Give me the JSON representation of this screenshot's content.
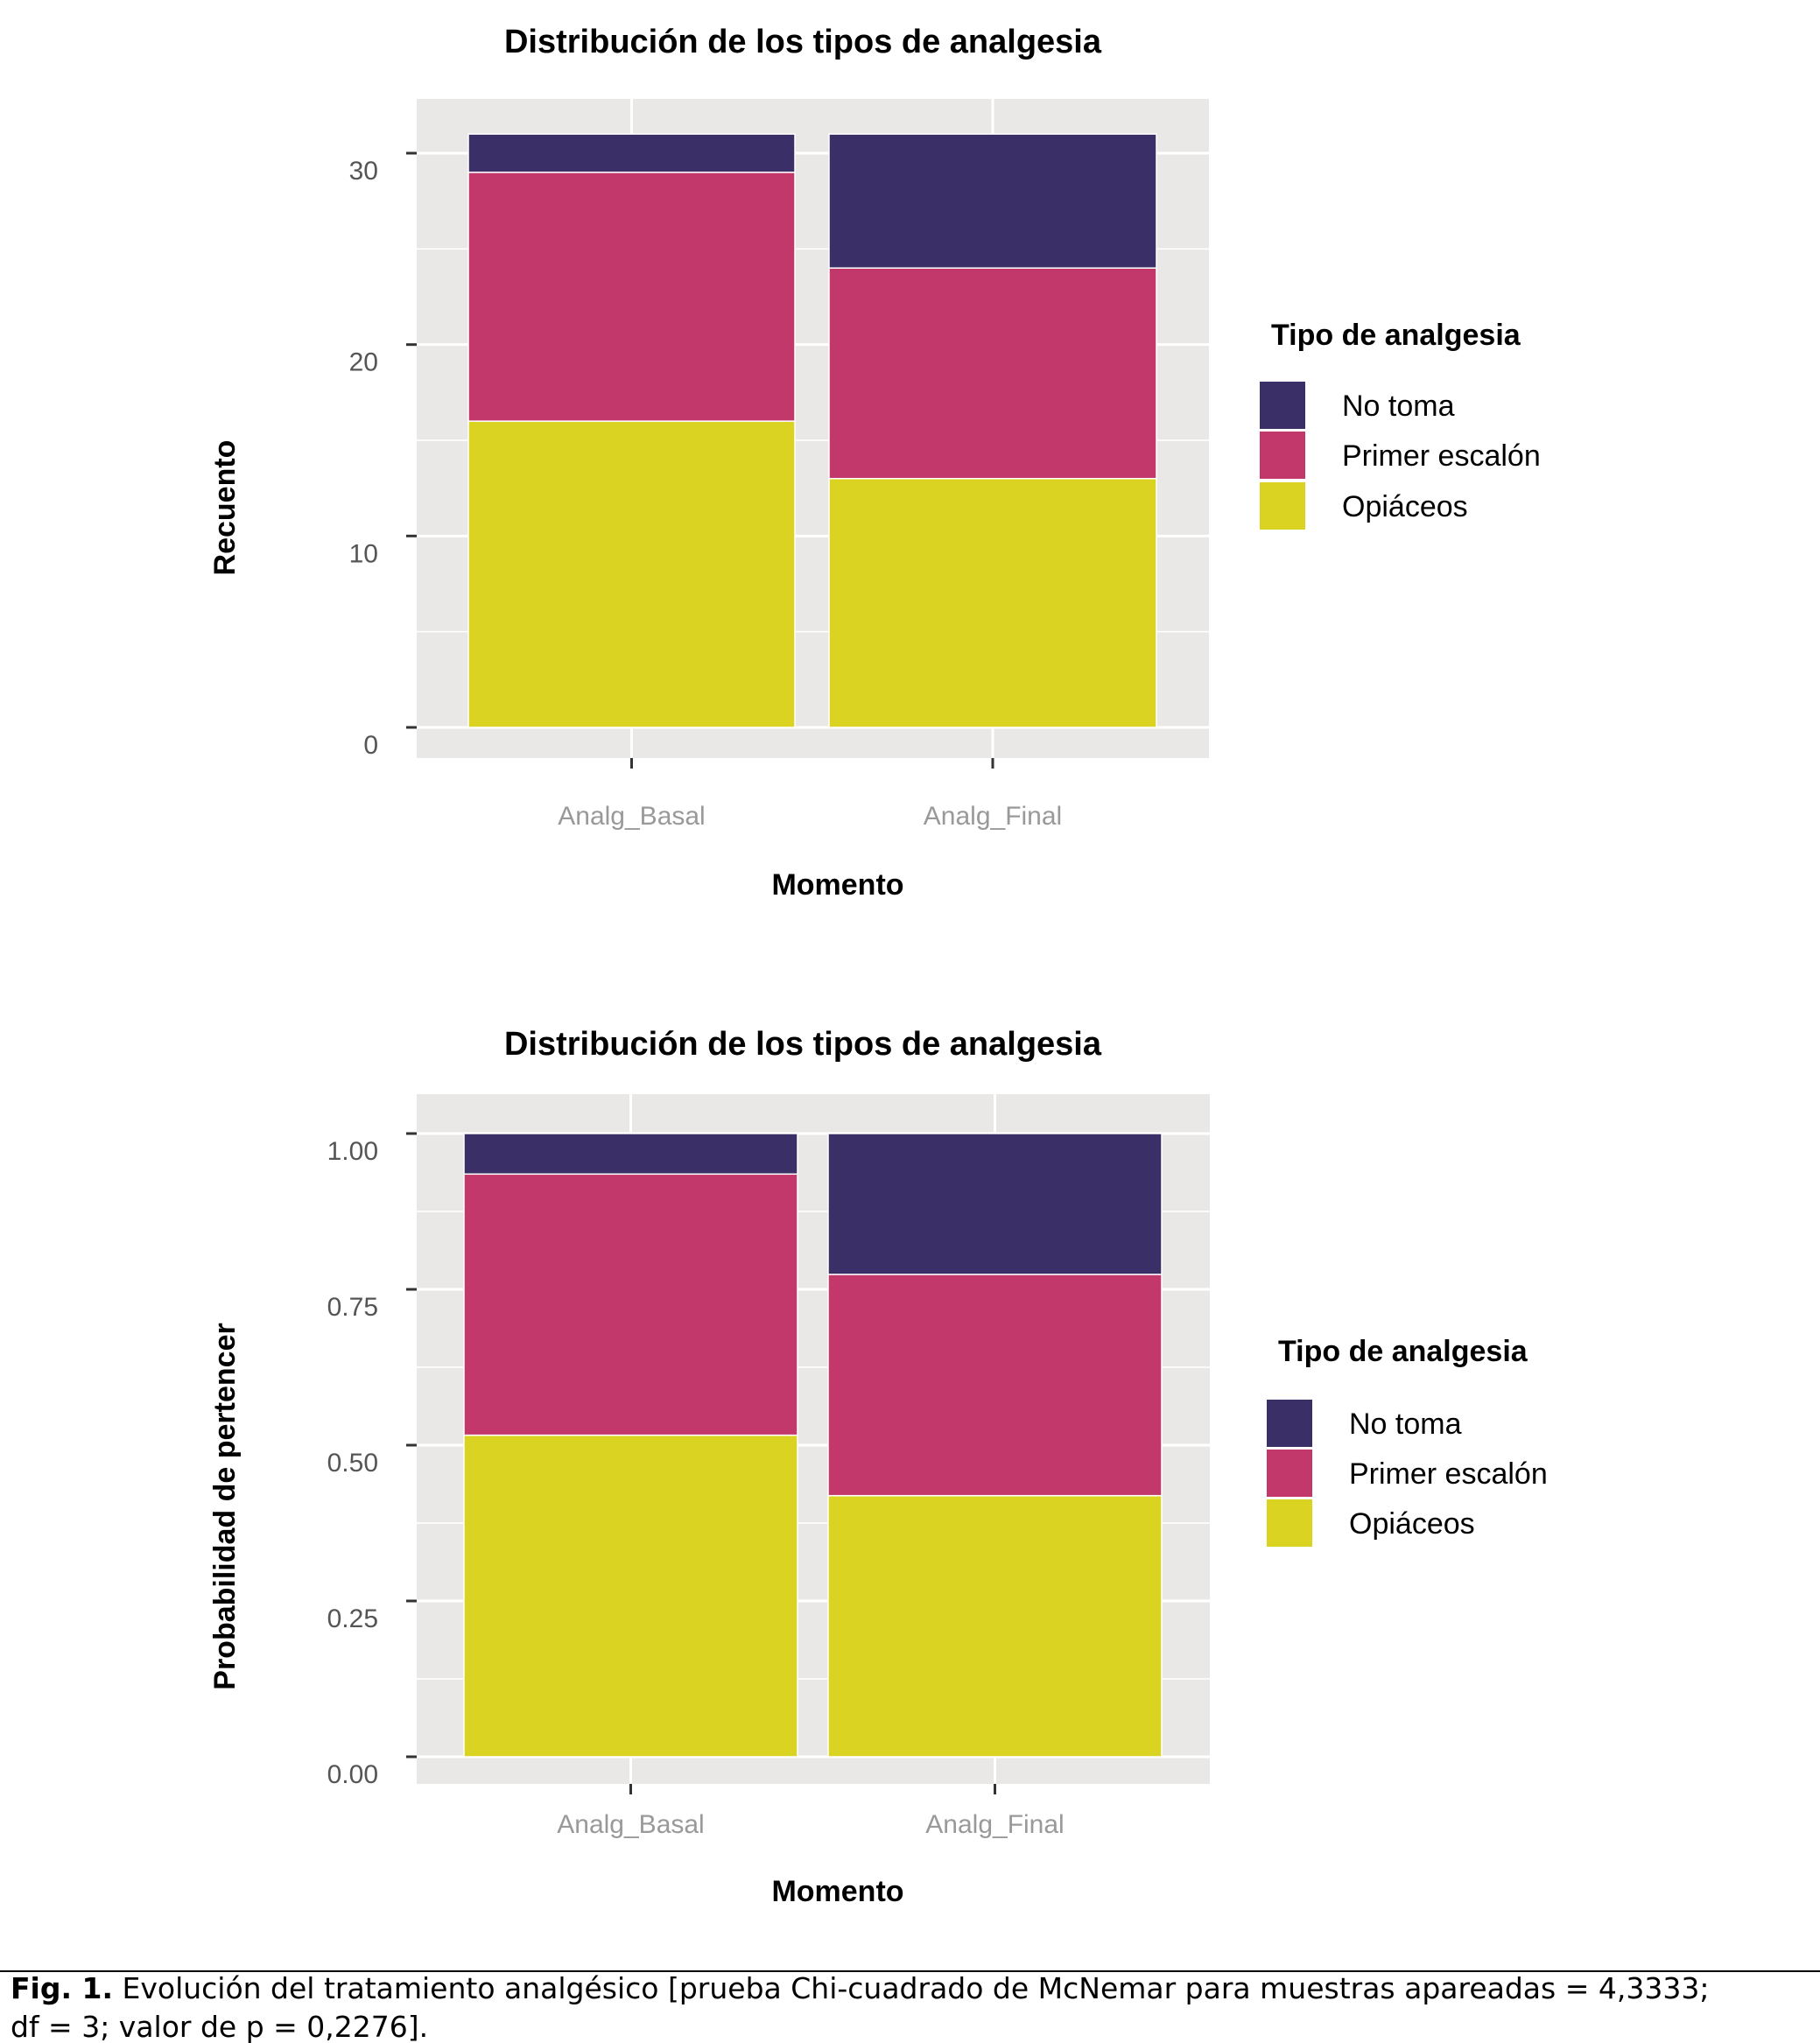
{
  "colors": {
    "No toma": "#3b2f67",
    "Primer escalón": "#c2386b",
    "Opiáceos": "#dbd322",
    "panel": "#e9e8e6",
    "grid": "#ffffff"
  },
  "chart_data": [
    {
      "type": "bar",
      "stacked": true,
      "title": "Distribución de los tipos de analgesia",
      "xlabel": "Momento",
      "ylabel": "Recuento",
      "categories": [
        "Analg_Basal",
        "Analg_Final"
      ],
      "ylim": [
        0,
        32.5
      ],
      "yticks": [
        0,
        10,
        20,
        30
      ],
      "grid": true,
      "legend": {
        "title": "Tipo de analgesia",
        "position": "right",
        "entries": [
          "No toma",
          "Primer escalón",
          "Opiáceos"
        ]
      },
      "series": [
        {
          "name": "Opiáceos",
          "values": [
            16,
            13
          ]
        },
        {
          "name": "Primer escalón",
          "values": [
            13,
            11
          ]
        },
        {
          "name": "No toma",
          "values": [
            2,
            7
          ]
        }
      ]
    },
    {
      "type": "bar",
      "stacked": true,
      "title": "Distribución de los tipos de analgesia",
      "xlabel": "Momento",
      "ylabel": "Probabilidad de pertencer",
      "categories": [
        "Analg_Basal",
        "Analg_Final"
      ],
      "ylim": [
        0,
        1.05
      ],
      "yticks": [
        "0.00",
        "0.25",
        "0.50",
        "0.75",
        "1.00"
      ],
      "grid": true,
      "legend": {
        "title": "Tipo de analgesia",
        "position": "right",
        "entries": [
          "No toma",
          "Primer escalón",
          "Opiáceos"
        ]
      },
      "series": [
        {
          "name": "Opiáceos",
          "values": [
            0.516,
            0.419
          ]
        },
        {
          "name": "Primer escalón",
          "values": [
            0.419,
            0.355
          ]
        },
        {
          "name": "No toma",
          "values": [
            0.065,
            0.226
          ]
        }
      ]
    }
  ],
  "caption": {
    "label": "Fig. 1.",
    "line1": "Evolución del tratamiento analgésico [prueba Chi-cuadrado de McNemar para muestras apareadas = 4,3333;",
    "line2": "df = 3; valor de p = 0,2276]."
  }
}
